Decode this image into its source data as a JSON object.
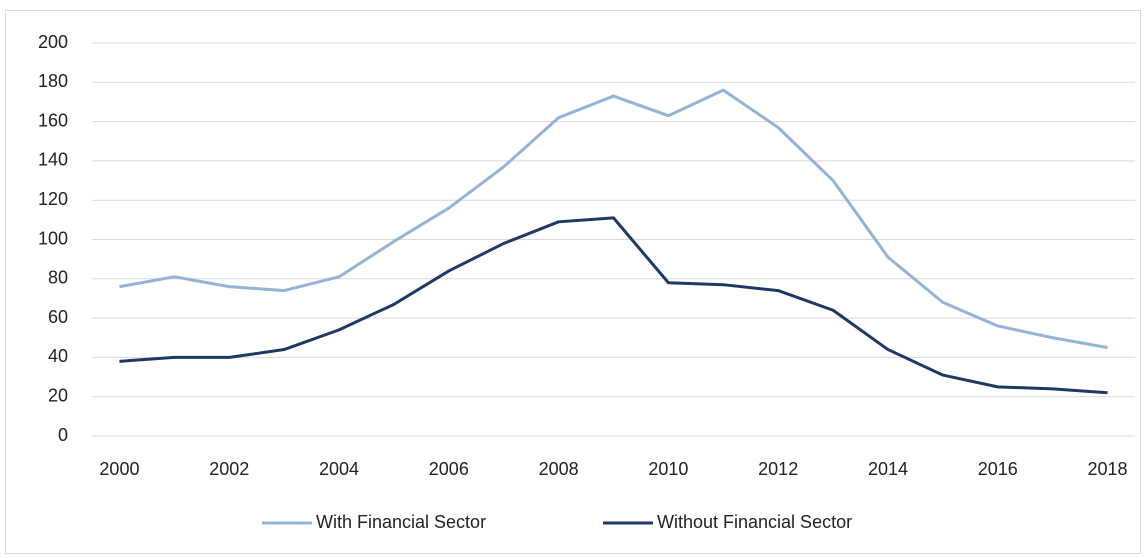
{
  "chart_data": {
    "type": "line",
    "x": [
      2000,
      2001,
      2002,
      2003,
      2004,
      2005,
      2006,
      2007,
      2008,
      2009,
      2010,
      2011,
      2012,
      2013,
      2014,
      2015,
      2016,
      2017,
      2018
    ],
    "series": [
      {
        "name": "With Financial Sector",
        "color": "#95b3d7",
        "values": [
          76,
          81,
          76,
          74,
          81,
          99,
          116,
          137,
          162,
          173,
          163,
          176,
          157,
          130,
          91,
          68,
          56,
          50,
          45
        ]
      },
      {
        "name": "Without Financial Sector",
        "color": "#1f3864",
        "values": [
          38,
          40,
          40,
          44,
          54,
          67,
          84,
          98,
          109,
          111,
          78,
          77,
          74,
          64,
          44,
          31,
          25,
          24,
          22
        ]
      }
    ],
    "xlim": [
      1999.5,
      2018.5
    ],
    "xticks": [
      2000,
      2002,
      2004,
      2006,
      2008,
      2010,
      2012,
      2014,
      2016,
      2018
    ],
    "ylim": [
      0,
      200
    ],
    "yticks": [
      0,
      20,
      40,
      60,
      80,
      100,
      120,
      140,
      160,
      180,
      200
    ],
    "grid": true,
    "legend": "bottom"
  }
}
